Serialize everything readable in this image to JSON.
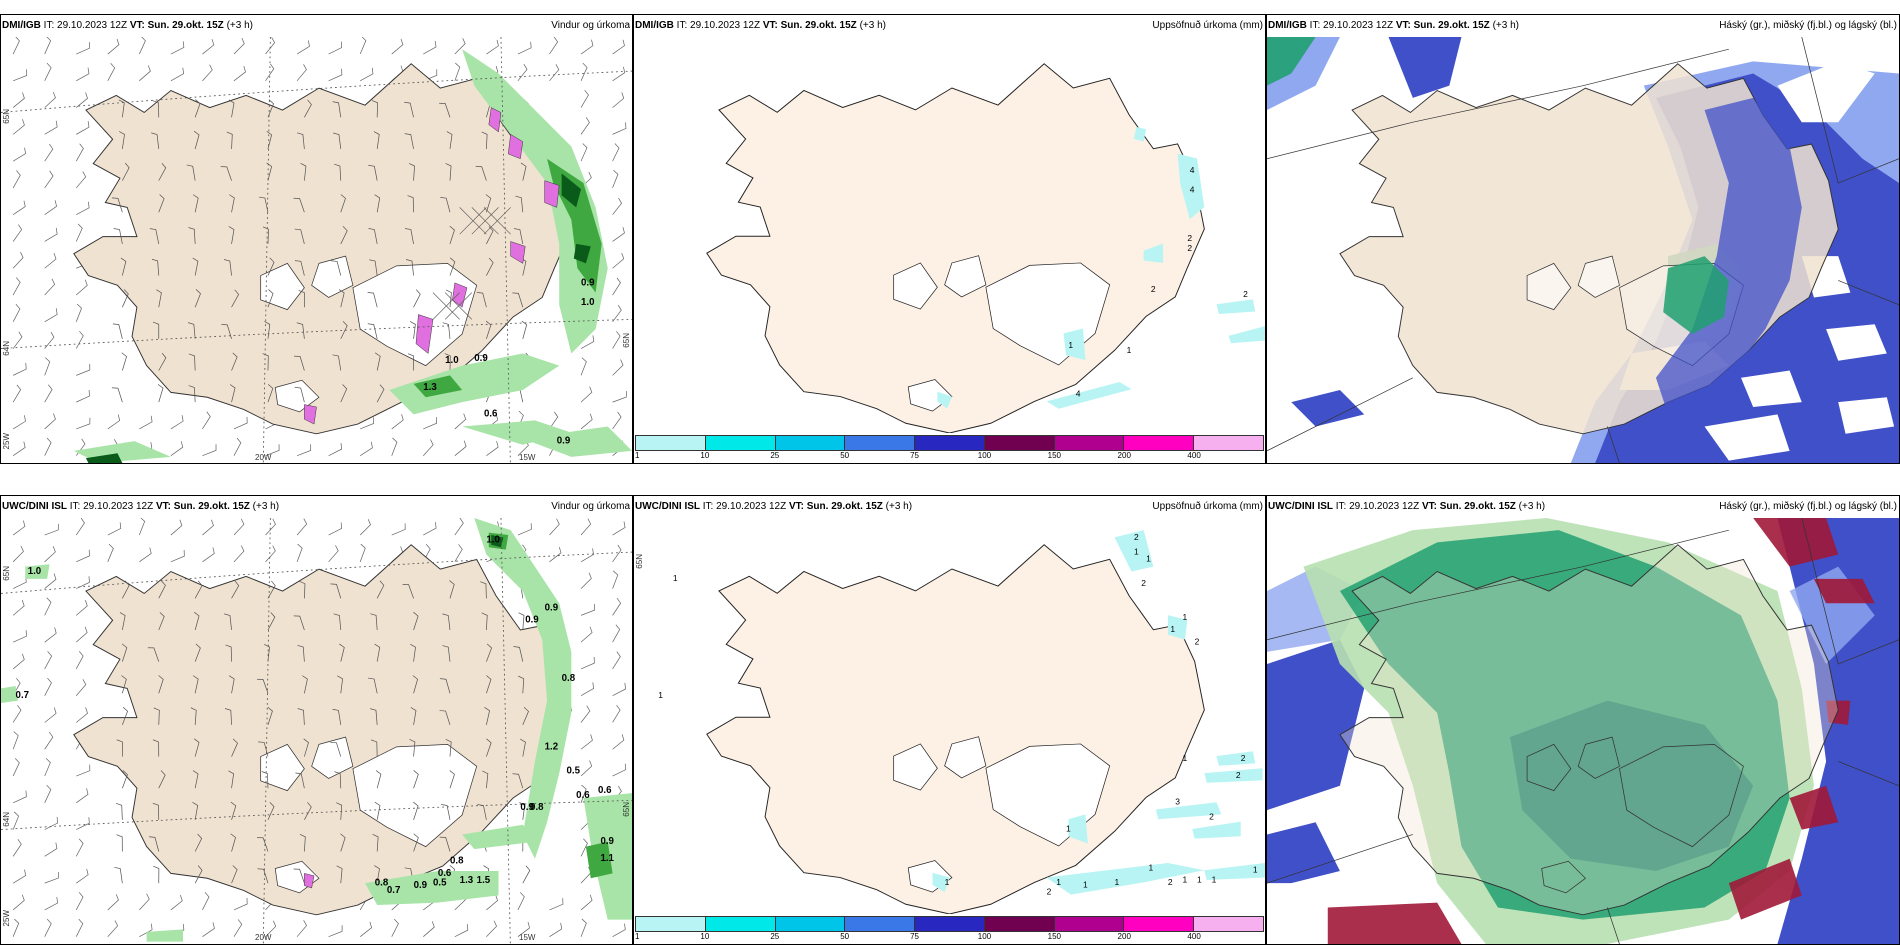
{
  "panels": {
    "p1": {
      "model": "DMI/IGB",
      "it_label": "IT:",
      "it_value": "29.10.2023 12Z",
      "vt_label": "VT:",
      "vt_value": "Sun. 29.okt. 15Z",
      "lead": "(+3 h)",
      "title": "Vindur og úrkoma",
      "labels": [
        "0.9",
        "1.0",
        "1.0",
        "0.9",
        "1.3",
        "0.6",
        "0.9"
      ],
      "axes": {
        "lat_top": "65N",
        "lat_bottom": "64N",
        "lon_left": "20W",
        "lon_right": "15W",
        "corner": "25W",
        "right_edge": "65N"
      }
    },
    "p2": {
      "model": "DMI/IGB",
      "it_label": "IT:",
      "it_value": "29.10.2023 12Z",
      "vt_label": "VT:",
      "vt_value": "Sun. 29.okt. 15Z",
      "lead": "(+3 h)",
      "title": "Uppsöfnuð úrkoma (mm)",
      "labels": [
        "4",
        "4",
        "2",
        "2",
        "2",
        "2",
        "1",
        "1",
        "4"
      ]
    },
    "p3": {
      "model": "DMI/IGB",
      "it_label": "IT:",
      "it_value": "29.10.2023 12Z",
      "vt_label": "VT:",
      "vt_value": "Sun. 29.okt. 15Z",
      "lead": "(+3 h)",
      "title": "Háský (gr.), miðský (fj.bl.) og lágský (bl.)"
    },
    "p4": {
      "model": "UWC/DINI ISL",
      "it_label": "IT:",
      "it_value": "29.10.2023 12Z",
      "vt_label": "VT:",
      "vt_value": "Sun. 29.okt. 15Z",
      "lead": "(+3 h)",
      "title": "Vindur og úrkoma",
      "labels": [
        "1.0",
        "1.0",
        "0.9",
        "0.9",
        "0.7",
        "0.8",
        "1.2",
        "0.5",
        "0.6",
        "0.6",
        "0.9",
        "0.8",
        "0.9",
        "1.1",
        "0.8",
        "0.6",
        "0.8",
        "0.7",
        "0.9",
        "0.5",
        "1.3",
        "1.5"
      ],
      "axes": {
        "lat_top": "65N",
        "lat_bottom": "64N",
        "lon_left": "20W",
        "lon_right": "15W",
        "corner": "25W",
        "right_edge": "65N"
      }
    },
    "p5": {
      "model": "UWC/DINI ISL",
      "it_label": "IT:",
      "it_value": "29.10.2023 12Z",
      "vt_label": "VT:",
      "vt_value": "Sun. 29.okt. 15Z",
      "lead": "(+3 h)",
      "title": "Uppsöfnuð úrkoma (mm)",
      "labels": [
        "1",
        "1",
        "2",
        "1",
        "1",
        "2",
        "1",
        "1",
        "2",
        "2",
        "1",
        "2",
        "3",
        "1",
        "2",
        "2",
        "1",
        "1",
        "1",
        "1",
        "1",
        "2",
        "1",
        "1",
        "1",
        "1"
      ],
      "axes": {
        "lat_top": "65N"
      }
    },
    "p6": {
      "model": "UWC/DINI ISL",
      "it_label": "IT:",
      "it_value": "29.10.2023 12Z",
      "vt_label": "VT:",
      "vt_value": "Sun. 29.okt. 15Z",
      "lead": "(+3 h)",
      "title": "Háský (gr.), miðský (fj.bl.) og lágský (bl.)"
    }
  },
  "legend": {
    "ticks": [
      "1",
      "10",
      "25",
      "50",
      "75",
      "100",
      "150",
      "200",
      "400"
    ],
    "colors": [
      "#b8f4f4",
      "#00e8e8",
      "#00c4e8",
      "#3a78e8",
      "#2828c0",
      "#700050",
      "#b00090",
      "#ff00c0",
      "#f6b0f0"
    ]
  },
  "colors": {
    "land": "#f0e2d0",
    "land_light": "#fdf0e4",
    "ice": "#ffffff",
    "precip_light": "#a8e4a8",
    "precip_mid": "#40a840",
    "precip_dark": "#0a5a1a",
    "snow_hail": "#e070e0",
    "high_cloud": "#20a070",
    "mid_cloud": "#4050c8",
    "low_cloud": "#90a8f0",
    "high_red": "#a01838",
    "water": "#ffffff"
  }
}
